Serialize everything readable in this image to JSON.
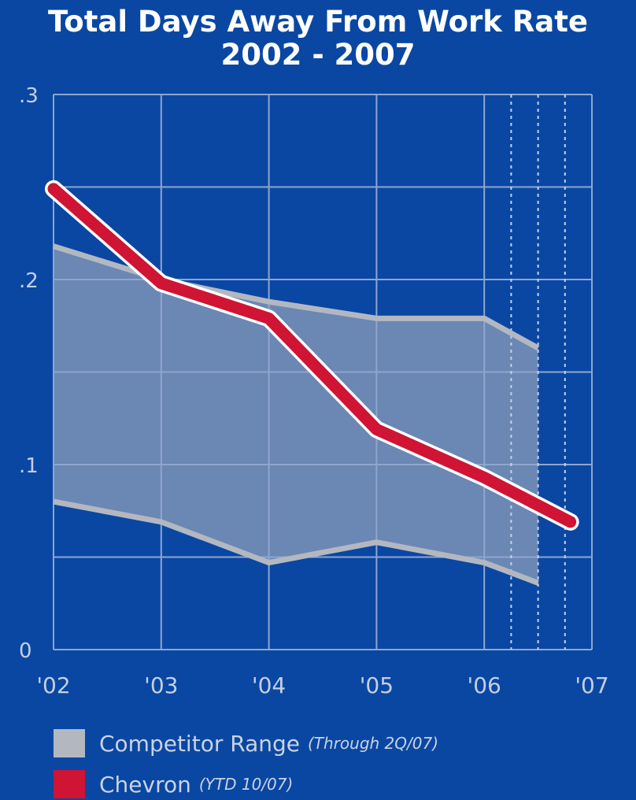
{
  "chart_data": {
    "type": "line",
    "title": "Total Days Away From Work Rate",
    "subtitle": "2002 - 2007",
    "xlabel": "",
    "ylabel": "",
    "x_ticks": [
      "'02",
      "'03",
      "'04",
      "'05",
      "'06",
      "'07"
    ],
    "y_ticks": [
      "0",
      ".1",
      ".2",
      ".3"
    ],
    "ylim": [
      0,
      0.3
    ],
    "xlim": [
      2002,
      2007
    ],
    "grid": true,
    "series": [
      {
        "name": "Chevron",
        "note": "(YTD 10/07)",
        "color": "#cf1434",
        "points": [
          {
            "x": 2002,
            "y": 0.249
          },
          {
            "x": 2003,
            "y": 0.198
          },
          {
            "x": 2004,
            "y": 0.179
          },
          {
            "x": 2005,
            "y": 0.119
          },
          {
            "x": 2006,
            "y": 0.093
          },
          {
            "x": 2006.8,
            "y": 0.069
          }
        ]
      }
    ],
    "range": {
      "name": "Competitor Range",
      "note": "(Through 2Q/07)",
      "color": "#b3b8c0",
      "upper": [
        {
          "x": 2002,
          "y": 0.218
        },
        {
          "x": 2003,
          "y": 0.2
        },
        {
          "x": 2004,
          "y": 0.188
        },
        {
          "x": 2005,
          "y": 0.179
        },
        {
          "x": 2006,
          "y": 0.179
        },
        {
          "x": 2006.5,
          "y": 0.163
        }
      ],
      "lower": [
        {
          "x": 2002,
          "y": 0.08
        },
        {
          "x": 2003,
          "y": 0.069
        },
        {
          "x": 2004,
          "y": 0.047
        },
        {
          "x": 2005,
          "y": 0.058
        },
        {
          "x": 2006,
          "y": 0.047
        },
        {
          "x": 2006.5,
          "y": 0.036
        }
      ]
    },
    "dashed_x": [
      2006.25,
      2006.5,
      2006.75
    ]
  },
  "legend": {
    "items": [
      {
        "label": "Competitor Range",
        "note": "(Through 2Q/07)",
        "color": "#b3b8c0"
      },
      {
        "label": "Chevron",
        "note": "(YTD 10/07)",
        "color": "#cf1434"
      }
    ]
  }
}
